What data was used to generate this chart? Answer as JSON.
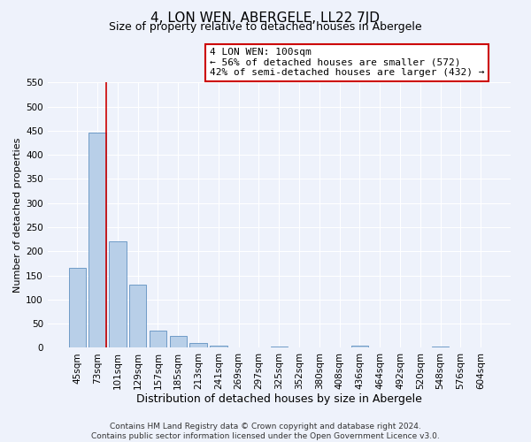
{
  "title": "4, LON WEN, ABERGELE, LL22 7JD",
  "subtitle": "Size of property relative to detached houses in Abergele",
  "xlabel": "Distribution of detached houses by size in Abergele",
  "ylabel": "Number of detached properties",
  "bar_labels": [
    "45sqm",
    "73sqm",
    "101sqm",
    "129sqm",
    "157sqm",
    "185sqm",
    "213sqm",
    "241sqm",
    "269sqm",
    "297sqm",
    "325sqm",
    "352sqm",
    "380sqm",
    "408sqm",
    "436sqm",
    "464sqm",
    "492sqm",
    "520sqm",
    "548sqm",
    "576sqm",
    "604sqm"
  ],
  "bar_values": [
    165,
    447,
    220,
    130,
    36,
    25,
    10,
    5,
    0,
    0,
    3,
    0,
    0,
    0,
    4,
    0,
    0,
    0,
    3,
    0,
    0
  ],
  "bar_color": "#b8cfe8",
  "bar_edge_color": "#6090c0",
  "marker_line_color": "#cc0000",
  "annotation_line1": "4 LON WEN: 100sqm",
  "annotation_line2": "← 56% of detached houses are smaller (572)",
  "annotation_line3": "42% of semi-detached houses are larger (432) →",
  "annotation_box_edge_color": "#cc0000",
  "ylim": [
    0,
    550
  ],
  "yticks": [
    0,
    50,
    100,
    150,
    200,
    250,
    300,
    350,
    400,
    450,
    500,
    550
  ],
  "background_color": "#eef2fb",
  "grid_color": "#ffffff",
  "footnote": "Contains HM Land Registry data © Crown copyright and database right 2024.\nContains public sector information licensed under the Open Government Licence v3.0.",
  "title_fontsize": 11,
  "subtitle_fontsize": 9,
  "xlabel_fontsize": 9,
  "ylabel_fontsize": 8,
  "tick_fontsize": 7.5,
  "annotation_fontsize": 8,
  "footnote_fontsize": 6.5
}
